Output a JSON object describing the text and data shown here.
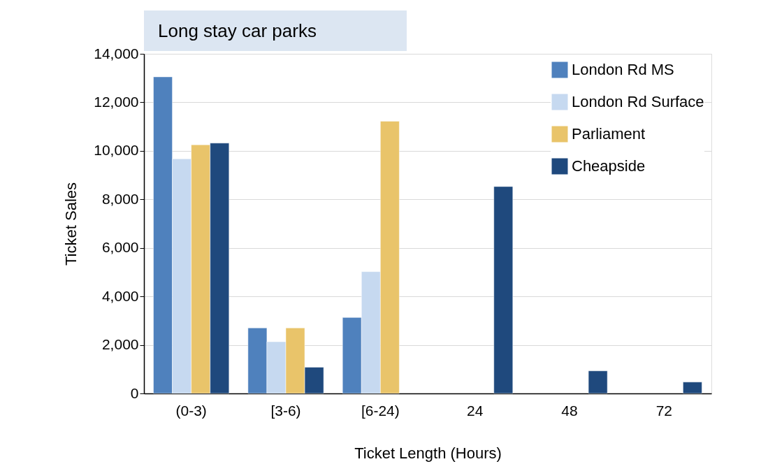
{
  "chart_data": {
    "type": "bar",
    "title": "Long stay car parks",
    "xlabel": "Ticket Length (Hours)",
    "ylabel": "Ticket Sales",
    "categories": [
      "(0-3)",
      "[3-6)",
      "[6-24)",
      "24",
      "48",
      "72"
    ],
    "series": [
      {
        "name": "London Rd MS",
        "color": "#4f81bd",
        "values": [
          13050,
          2700,
          3130,
          null,
          null,
          null
        ]
      },
      {
        "name": "London Rd Surface",
        "color": "#c6d9f0",
        "values": [
          9670,
          2130,
          5020,
          null,
          null,
          null
        ]
      },
      {
        "name": "Parliament",
        "color": "#e9c46a",
        "values": [
          10250,
          2700,
          11220,
          null,
          null,
          null
        ]
      },
      {
        "name": "Cheapside",
        "color": "#1f497d",
        "values": [
          10320,
          1080,
          null,
          8530,
          930,
          470
        ]
      }
    ],
    "ylim": [
      0,
      14000
    ],
    "yticks": [
      0,
      {
        "value": 2000,
        "label": "2,000"
      },
      {
        "value": 4000,
        "label": "4,000"
      },
      {
        "value": 6000,
        "label": "6,000"
      },
      {
        "value": 8000,
        "label": "8,000"
      },
      {
        "value": 10000,
        "label": "10,000"
      },
      {
        "value": 12000,
        "label": "12,000"
      },
      {
        "value": 14000,
        "label": "14,000"
      }
    ],
    "grid": "y",
    "legend": "top right"
  }
}
